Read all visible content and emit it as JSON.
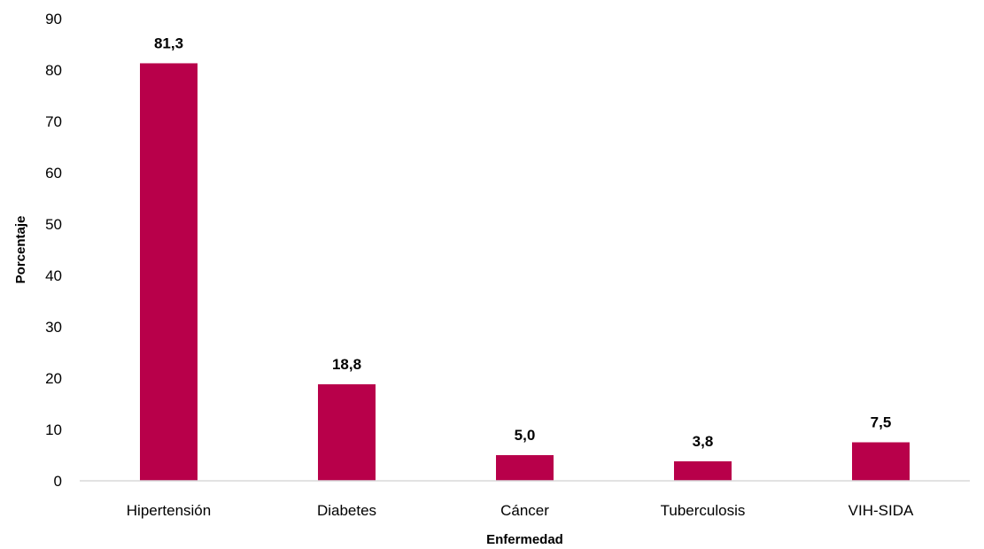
{
  "chart_data": {
    "type": "bar",
    "categories": [
      "Hipertensión",
      "Diabetes",
      "Cáncer",
      "Tuberculosis",
      "VIH-SIDA"
    ],
    "values": [
      81.3,
      18.8,
      5.0,
      3.8,
      7.5
    ],
    "data_labels": [
      "81,3",
      "18,8",
      "5,0",
      "3,8",
      "7,5"
    ],
    "title": "",
    "xlabel": "Enfermedad",
    "ylabel": "Porcentaje",
    "ylim": [
      0,
      90
    ],
    "yticks": [
      0,
      10,
      20,
      30,
      40,
      50,
      60,
      70,
      80,
      90
    ],
    "grid": false,
    "legend": "none",
    "bar_color": "#b8004a",
    "axis_color": "#d9d9d9"
  }
}
